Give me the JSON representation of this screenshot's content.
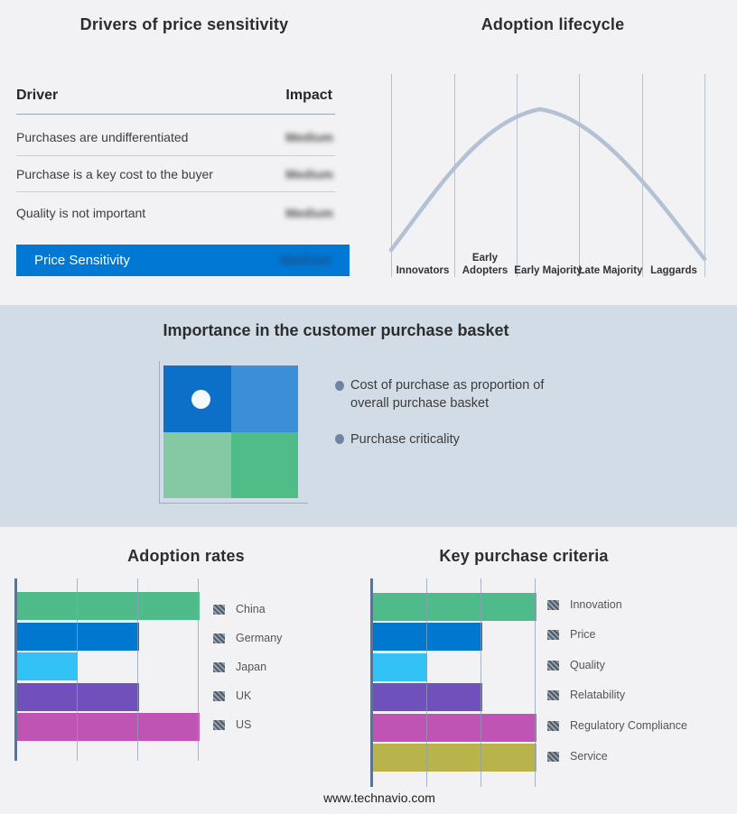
{
  "drivers_panel": {
    "title": "Drivers of price sensitivity",
    "col_driver": "Driver",
    "col_impact": "Impact",
    "rows": [
      {
        "driver": "Purchases are undifferentiated",
        "impact": "Medium",
        "impact_redacted": true
      },
      {
        "driver": "Purchase is a key cost to the buyer",
        "impact": "Medium",
        "impact_redacted": true
      },
      {
        "driver": "Quality is not important",
        "impact": "Medium",
        "impact_redacted": true
      }
    ],
    "summary_row": {
      "label": "Price Sensitivity",
      "impact": "Medium",
      "impact_redacted": true,
      "bg_color": "#0078d4"
    }
  },
  "lifecycle": {
    "title": "Adoption lifecycle",
    "stages": [
      "Innovators",
      "Early Adopters",
      "Early Majority",
      "Late Majority",
      "Laggards"
    ]
  },
  "basket": {
    "title": "Importance in the customer purchase basket",
    "bullets": [
      "Cost of purchase as proportion of overall purchase basket",
      "Purchase criticality"
    ]
  },
  "adoption_rates": {
    "title": "Adoption rates",
    "legend": [
      "China",
      "Germany",
      "Japan",
      "UK",
      "US"
    ]
  },
  "key_purchase_criteria": {
    "title": "Key purchase criteria",
    "legend": [
      "Innovation",
      "Price",
      "Quality",
      "Relatability",
      "Regulatory Compliance",
      "Service"
    ]
  },
  "footer": {
    "url": "www.technavio.com"
  },
  "colors": {
    "page_bg": "#f2f2f4",
    "band_bg": "#d2dce7",
    "accent_blue": "#0078d4",
    "curve": "#b3c1d5",
    "axis": "#5d7392",
    "gridline": "#8d9eb4",
    "legend_hatch": [
      "#4e5a66",
      "#98a2ac"
    ]
  },
  "chart_data": [
    {
      "type": "line",
      "title": "Adoption lifecycle",
      "x_categories": [
        "Innovators",
        "Early Adopters",
        "Early Majority",
        "Late Majority",
        "Laggards"
      ],
      "description": "Bell-shaped adoption curve rising from Innovators, peaking within Early Majority, falling through Laggards",
      "approx_points_pct": [
        [
          0,
          5
        ],
        [
          20,
          42
        ],
        [
          40,
          82
        ],
        [
          47,
          86
        ],
        [
          60,
          76
        ],
        [
          80,
          43
        ],
        [
          100,
          0
        ]
      ],
      "line_color": "#b3c1d5",
      "grid": "vertical segment dividers only",
      "legend": "none"
    },
    {
      "type": "bar",
      "orientation": "horizontal",
      "title": "Adoption rates",
      "categories": [
        "China",
        "Germany",
        "Japan",
        "UK",
        "US"
      ],
      "values": [
        3,
        2,
        1,
        2,
        3
      ],
      "xlim": [
        0,
        3
      ],
      "value_note": "no numeric axis labels shown; lengths read in gridline units",
      "bar_colors": [
        "#4fbb8b",
        "#0078cf",
        "#33c2f5",
        "#7051bb",
        "#bf54b5"
      ],
      "legend_position": "right",
      "grid": "vertical gridlines on"
    },
    {
      "type": "bar",
      "orientation": "horizontal",
      "title": "Key purchase criteria",
      "categories": [
        "Innovation",
        "Price",
        "Quality",
        "Relatability",
        "Regulatory Compliance",
        "Service"
      ],
      "values": [
        3,
        2,
        1,
        2,
        3,
        3
      ],
      "xlim": [
        0,
        3
      ],
      "value_note": "no numeric axis labels shown; lengths read in gridline units",
      "bar_colors": [
        "#4fbb8b",
        "#0078cf",
        "#33c2f5",
        "#7051bb",
        "#bf54b5",
        "#b9b34b"
      ],
      "legend_position": "right",
      "grid": "vertical gridlines on"
    },
    {
      "type": "heatmap",
      "title": "Importance in the customer purchase basket",
      "grid_colors": [
        [
          "#0d70c8",
          "#3b8ed8"
        ],
        [
          "#85c8a4",
          "#50bd88"
        ]
      ],
      "marker": {
        "row": 0,
        "col": 0,
        "shape": "circle",
        "color": "#f3f9fd"
      }
    }
  ]
}
